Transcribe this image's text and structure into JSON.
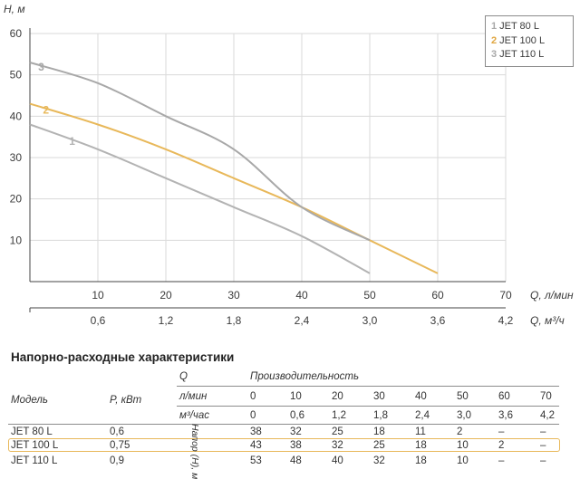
{
  "chart_data": {
    "type": "line",
    "ylabel": "H, м",
    "xlabel": "Q, л/мин",
    "x2label": "Q, м³/ч",
    "ylim": [
      0,
      60
    ],
    "xlim": [
      0,
      70
    ],
    "yticks": [
      10,
      20,
      30,
      40,
      50,
      60
    ],
    "xticks": [
      10,
      20,
      30,
      40,
      50,
      60,
      70
    ],
    "x2ticks": [
      "0,6",
      "1,2",
      "1,8",
      "2,4",
      "3,0",
      "3,6",
      "4,2"
    ],
    "grid": true,
    "legend_position": "top-right",
    "series": [
      {
        "name": "JET 80 L",
        "marker": "1",
        "color": "#b3b3b3",
        "x": [
          0,
          10,
          20,
          30,
          40,
          50
        ],
        "y": [
          38,
          32,
          25,
          18,
          11,
          2
        ]
      },
      {
        "name": "JET 100 L",
        "marker": "2",
        "color": "#e8b85a",
        "x": [
          0,
          10,
          20,
          30,
          40,
          50,
          60
        ],
        "y": [
          43,
          38,
          32,
          25,
          18,
          10,
          2
        ]
      },
      {
        "name": "JET 110 L",
        "marker": "3",
        "color": "#a8a8a8",
        "x": [
          0,
          10,
          20,
          30,
          40,
          50
        ],
        "y": [
          53,
          48,
          40,
          32,
          18,
          10
        ]
      }
    ]
  },
  "table": {
    "title": "Напорно-расходные характеристики",
    "head_q": "Q",
    "head_prod": "Производительность",
    "head_model": "Модель",
    "head_power": "P, кВт",
    "head_lmin": "л/мин",
    "head_m3": "м³/час",
    "head_vert": "Напор (H), м",
    "lmin": [
      "0",
      "10",
      "20",
      "30",
      "40",
      "50",
      "60",
      "70"
    ],
    "m3h": [
      "0",
      "0,6",
      "1,2",
      "1,8",
      "2,4",
      "3,0",
      "3,6",
      "4,2"
    ],
    "rows": [
      {
        "model": "JET 80 L",
        "power": "0,6",
        "values": [
          "38",
          "32",
          "25",
          "18",
          "11",
          "2",
          "–",
          "–"
        ]
      },
      {
        "model": "JET 100 L",
        "power": "0,75",
        "values": [
          "43",
          "38",
          "32",
          "25",
          "18",
          "10",
          "2",
          "–"
        ]
      },
      {
        "model": "JET 110 L",
        "power": "0,9",
        "values": [
          "53",
          "48",
          "40",
          "32",
          "18",
          "10",
          "–",
          "–"
        ]
      }
    ]
  }
}
